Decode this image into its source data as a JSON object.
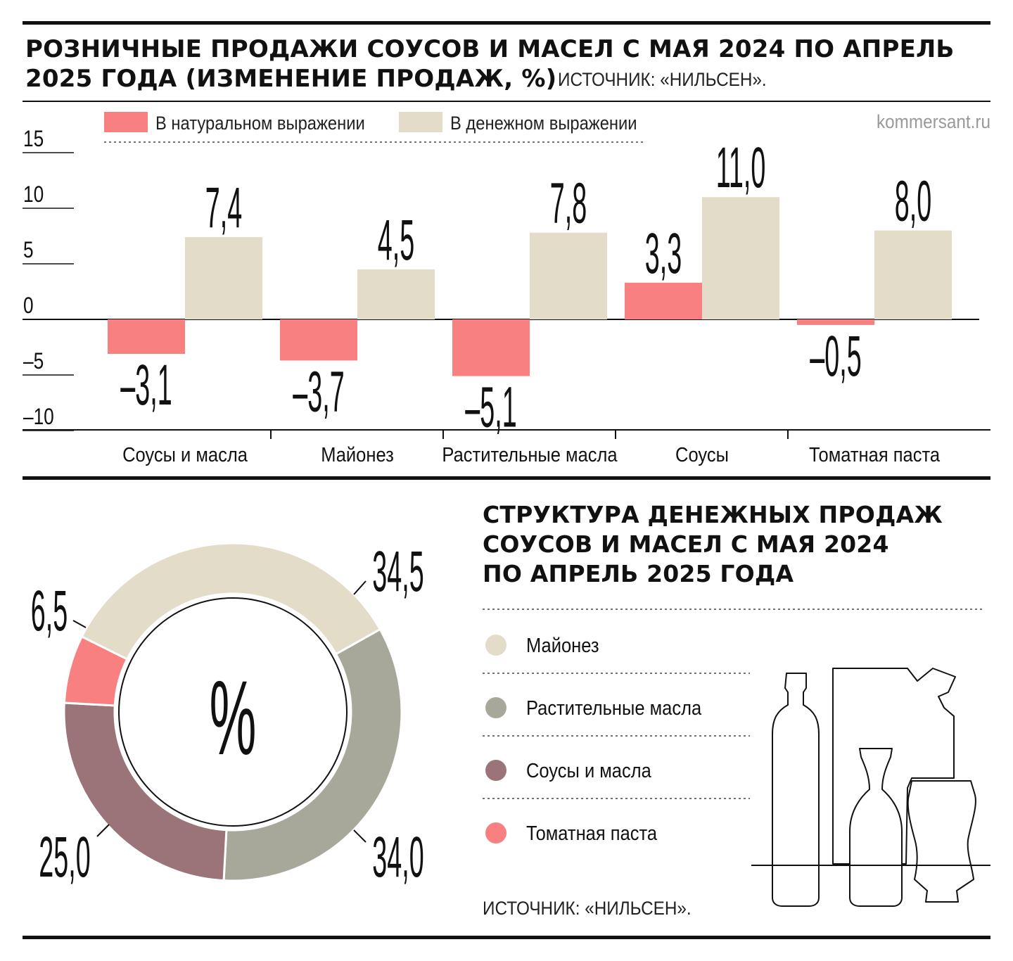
{
  "bar_section": {
    "title_line1": "РОЗНИЧНЫЕ ПРОДАЖИ СОУСОВ И МАСЕЛ С МАЯ 2024 ПО АПРЕЛЬ",
    "title_line2": "2025 ГОДА (ИЗМЕНЕНИЕ ПРОДАЖ, %)",
    "source": "ИСТОЧНИК: «НИЛЬСЕН».",
    "brand": "kommersant.ru"
  },
  "donut_section": {
    "title_line1": "СТРУКТУРА ДЕНЕЖНЫХ ПРОДАЖ",
    "title_line2": "СОУСОВ И МАСЕЛ С МАЯ 2024",
    "title_line3": "ПО АПРЕЛЬ 2025 ГОДА",
    "center_label": "%",
    "source": "ИСТОЧНИК: «НИЛЬСЕН»."
  },
  "colors": {
    "natural": "#f88080",
    "money": "#e2dcc8",
    "mayo": "#e2dcc8",
    "oils": "#a8a89a",
    "sauces_oils": "#9a7478",
    "tomato": "#f88080"
  },
  "chart_data": [
    {
      "type": "bar",
      "categories": [
        "Соусы и масла",
        "Майонез",
        "Растительные масла",
        "Соусы",
        "Томатная паста"
      ],
      "series": [
        {
          "name": "В натуральном выражении",
          "values": [
            -3.1,
            -3.7,
            -5.1,
            3.3,
            -0.5
          ],
          "labels": [
            "–3,1",
            "–3,7",
            "–5,1",
            "3,3",
            "–0,5"
          ]
        },
        {
          "name": "В денежном выражении",
          "values": [
            7.4,
            4.5,
            7.8,
            11.0,
            8.0
          ],
          "labels": [
            "7,4",
            "4,5",
            "7,8",
            "11,0",
            "8,0"
          ]
        }
      ],
      "ylim": [
        -10,
        15
      ],
      "yticks": [
        15,
        10,
        5,
        0,
        -5,
        -10
      ],
      "ytick_labels": [
        "15",
        "10",
        "5",
        "0",
        "–5",
        "–10"
      ],
      "legend_position": "top"
    },
    {
      "type": "pie",
      "categories": [
        "Майонез",
        "Растительные масла",
        "Соусы и масла",
        "Томатная паста"
      ],
      "values": [
        34.5,
        34.0,
        25.0,
        6.5
      ],
      "labels": [
        "34,5",
        "34,0",
        "25,0",
        "6,5"
      ],
      "legend_position": "right"
    }
  ]
}
